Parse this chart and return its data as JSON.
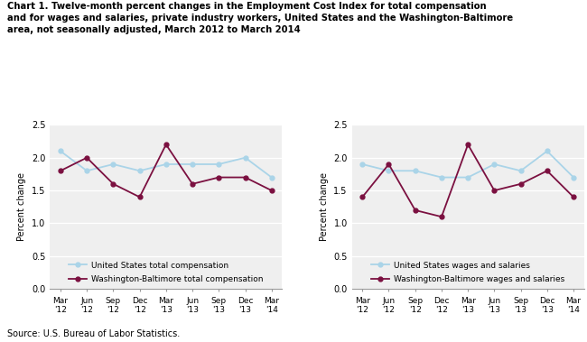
{
  "title_line1": "Chart 1. Twelve-month percent changes in the Employment Cost Index for total compensation",
  "title_line2": "and for wages and salaries, private industry workers, United States and the Washington-Baltimore",
  "title_line3": "area, not seasonally adjusted, March 2012 to March 2014",
  "x_labels": [
    "Mar\n'12",
    "Jun\n'12",
    "Sep\n'12",
    "Dec\n'12",
    "Mar\n'13",
    "Jun\n'13",
    "Sep\n'13",
    "Dec\n'13",
    "Mar\n'14"
  ],
  "ylabel": "Percent change",
  "ylim": [
    0.0,
    2.5
  ],
  "yticks": [
    0.0,
    0.5,
    1.0,
    1.5,
    2.0,
    2.5
  ],
  "left_us": [
    2.1,
    1.8,
    1.9,
    1.8,
    1.9,
    1.9,
    1.9,
    2.0,
    1.7
  ],
  "left_wb": [
    1.8,
    2.0,
    1.6,
    1.4,
    2.2,
    1.6,
    1.7,
    1.7,
    1.5
  ],
  "right_us": [
    1.9,
    1.8,
    1.8,
    1.7,
    1.7,
    1.9,
    1.8,
    2.1,
    1.7
  ],
  "right_wb": [
    1.4,
    1.9,
    1.2,
    1.1,
    2.2,
    1.5,
    1.6,
    1.8,
    1.4
  ],
  "color_us": "#aad4e8",
  "color_wb": "#7b1040",
  "left_legend1": "United States total compensation",
  "left_legend2": "Washington-Baltimore total compensation",
  "right_legend1": "United States wages and salaries",
  "right_legend2": "Washington-Baltimore wages and salaries",
  "source": "Source: U.S. Bureau of Labor Statistics.",
  "plot_bg": "#efefef"
}
